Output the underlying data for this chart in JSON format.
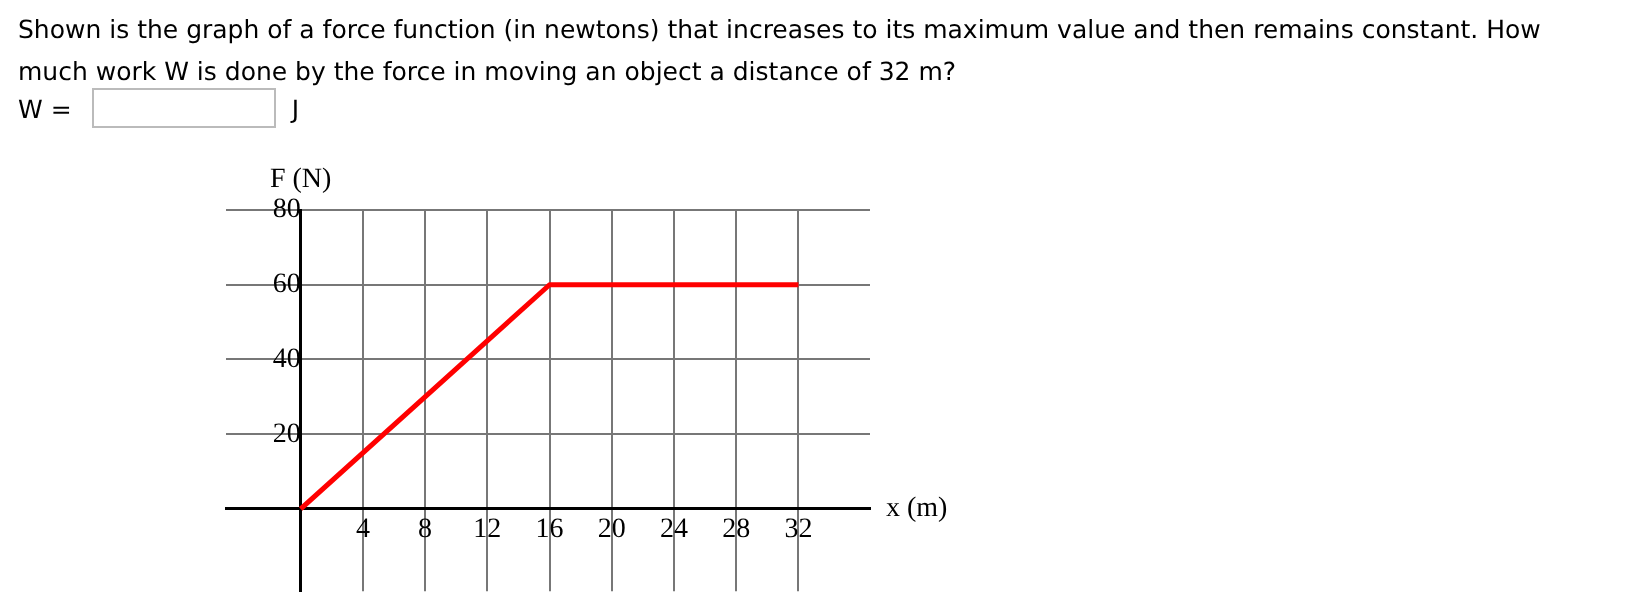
{
  "chart_data": {
    "type": "line",
    "title": "Shown is the graph of a force function (in newtons) that increases to its maximum value and then remains constant. How much work W is done by the force in moving an object a distance of 32 m?",
    "annotations": [
      "W =",
      "J"
    ],
    "xlabel": "x (m)",
    "ylabel": "F (N)",
    "x": [
      0,
      16,
      32
    ],
    "series": [
      {
        "color": "#ff0000",
        "values": [
          0,
          60,
          60
        ]
      }
    ],
    "xlim": [
      -4.8,
      36.6
    ],
    "ylim": [
      -22,
      80
    ],
    "xticks": [
      4,
      8,
      12,
      16,
      20,
      24,
      28,
      32
    ],
    "yticks": [
      20,
      40,
      60,
      80
    ],
    "grid": true,
    "legend": false,
    "marker": "none",
    "line_style": "solid"
  }
}
